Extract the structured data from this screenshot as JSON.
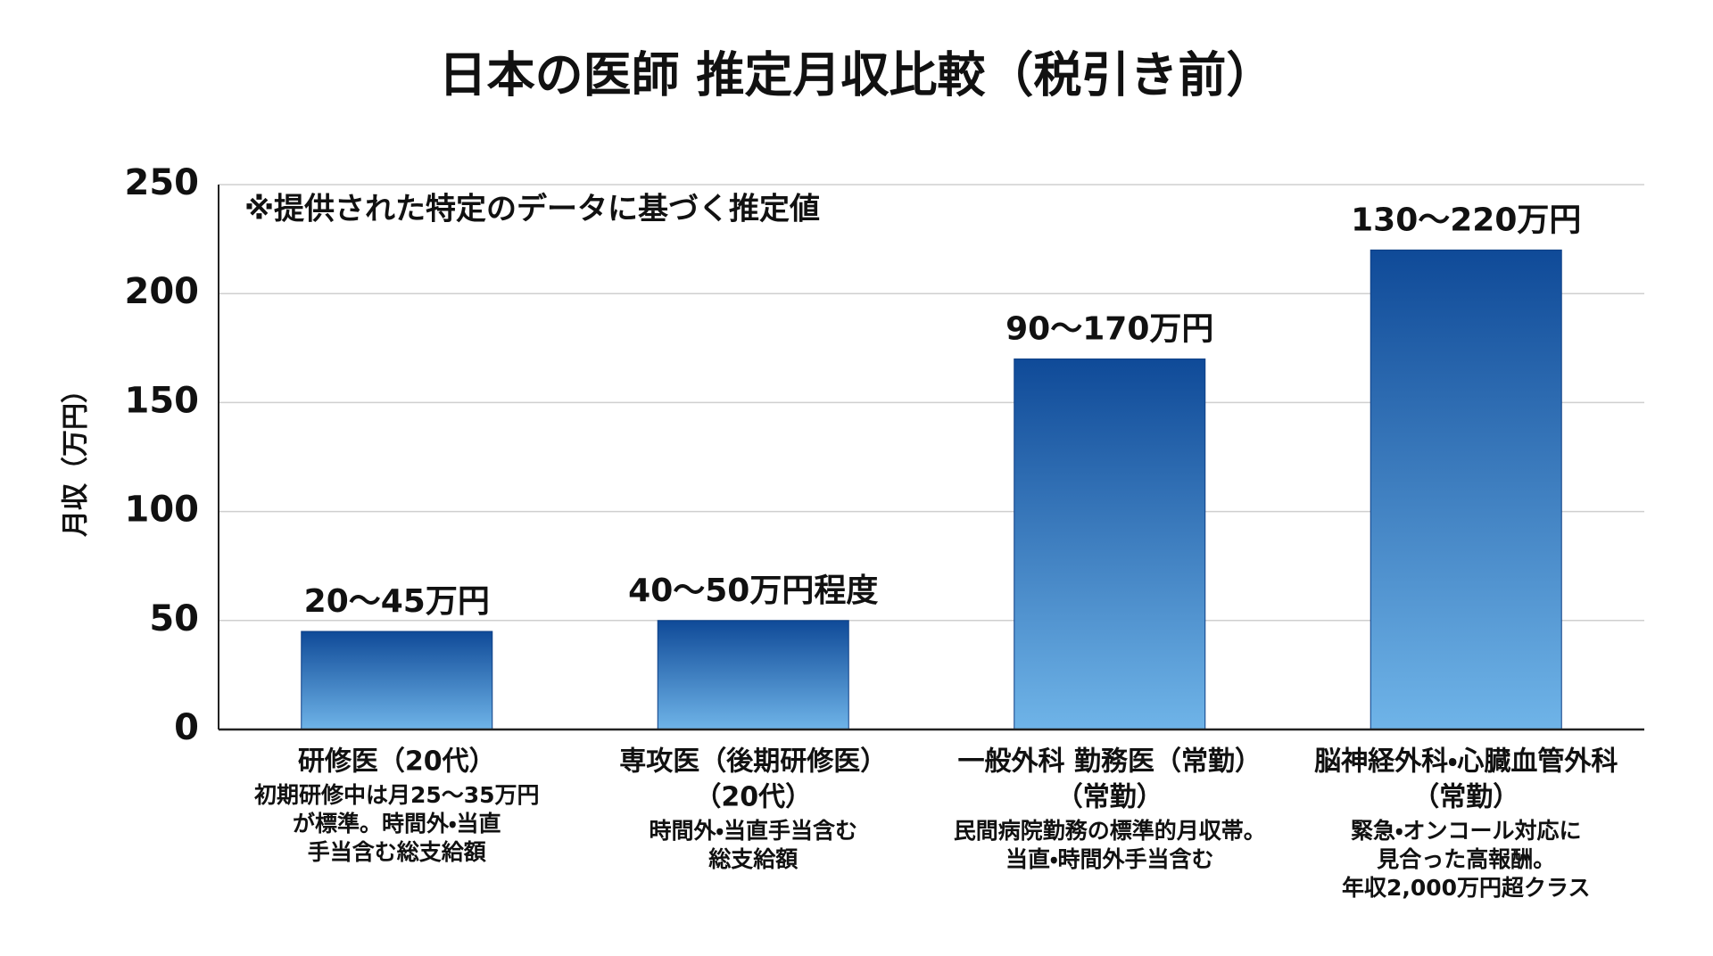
{
  "chart_data": {
    "type": "bar",
    "title": "日本の医師 推定月収比較（税引き前）",
    "annotation": "※提供された特定のデータに基づく推定値",
    "ylabel": "月収（万円）",
    "categories": [
      [
        "研修医（20代）"
      ],
      [
        "専攻医（後期研修医）",
        "（20代）"
      ],
      [
        "一般外科 勤務医（常勤）",
        "（常勤）"
      ],
      [
        "脳神経外科・心臓血管外科",
        "（常勤）"
      ]
    ],
    "descriptions": [
      [
        "初期研修中は月25〜35万円",
        "が標準。時間外・当直",
        "手当含む総支給額"
      ],
      [
        "時間外・当直手当含む",
        "総支給額"
      ],
      [
        "民間病院勤務の標準的月収帯。",
        "当直・時間外手当含む"
      ],
      [
        "緊急・オンコール対応に",
        "見合った高報酬。",
        "年収2,000万円超クラス"
      ]
    ],
    "values": [
      45,
      50,
      170,
      220
    ],
    "value_labels": [
      "20〜45万円",
      "40〜50万円程度",
      "90〜170万円",
      "130〜220万円"
    ],
    "color": [
      "#0f4a98",
      "#6fb4e8"
    ],
    "ylim": [
      0,
      250
    ],
    "yticks": [
      0,
      50,
      100,
      150,
      200,
      250
    ],
    "grid": true
  }
}
